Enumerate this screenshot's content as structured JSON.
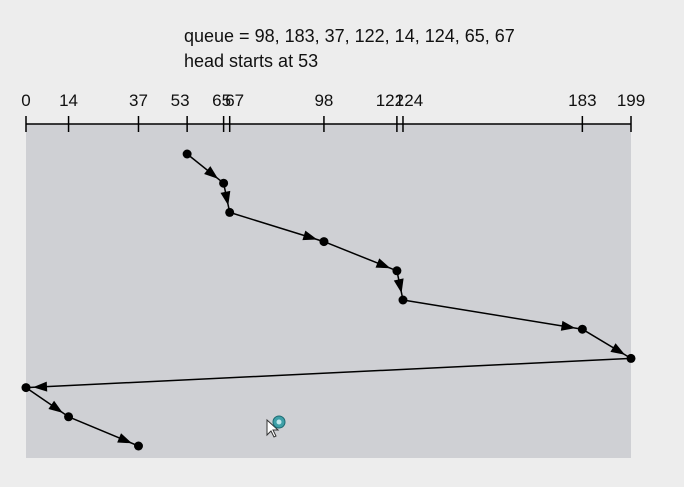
{
  "caption": {
    "queue_line": "queue = 98, 183, 37, 122, 14, 124, 65, 67",
    "head_line": "head starts at 53"
  },
  "axis": {
    "min": 0,
    "max": 199,
    "ticks": [
      0,
      14,
      37,
      53,
      65,
      67,
      98,
      122,
      124,
      183,
      199
    ],
    "tick_labels": [
      "0",
      "14",
      "37",
      "53",
      "65",
      "67",
      "98",
      "122",
      "124",
      "183",
      "199"
    ]
  },
  "sequence": [
    53,
    65,
    67,
    98,
    122,
    124,
    183,
    199,
    0,
    14,
    37
  ],
  "colors": {
    "panel": "#cfd0d4",
    "line": "#000000",
    "background": "#ededed"
  },
  "cursor": {
    "icon": "busy-pointer-icon"
  }
}
